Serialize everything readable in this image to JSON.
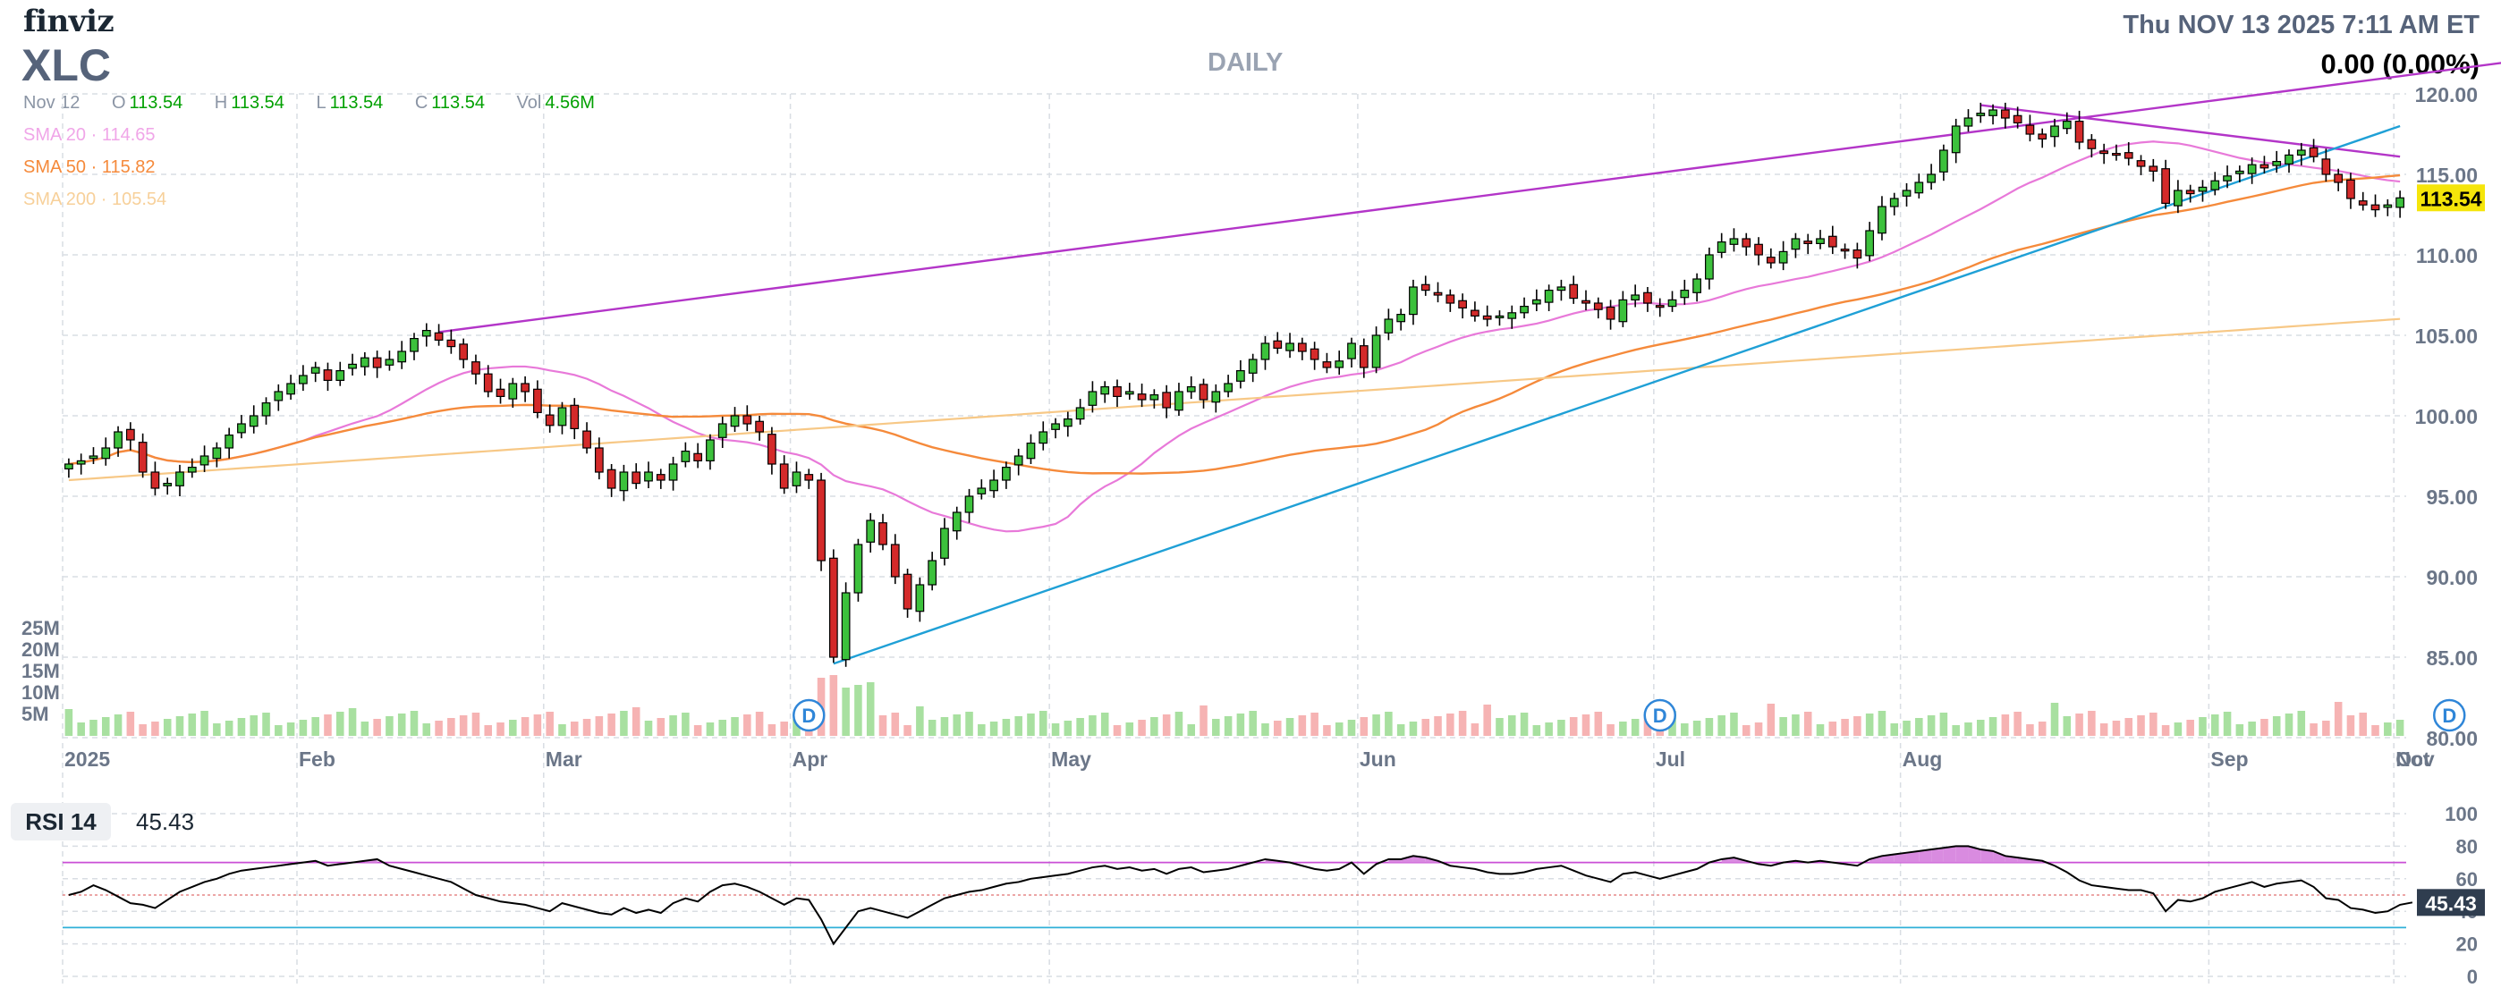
{
  "header": {
    "logo": "finviz",
    "ticker": "XLC",
    "timeframe": "DAILY",
    "datetime": "Thu NOV 13 2025 7:11 AM ET",
    "change": "0.00 (0.00%)"
  },
  "ohlc": {
    "date": "Nov 12",
    "o_label": "O",
    "o": "113.54",
    "h_label": "H",
    "h": "113.54",
    "l_label": "L",
    "l": "113.54",
    "c_label": "C",
    "c": "113.54",
    "vol_label": "Vol",
    "vol": "4.56M"
  },
  "sma": [
    {
      "label": "SMA 20",
      "value": "114.65",
      "color": "#e879d9"
    },
    {
      "label": "SMA 50",
      "value": "115.82",
      "color": "#f58a3b"
    },
    {
      "label": "SMA 200",
      "value": "105.54",
      "color": "#f7c886"
    }
  ],
  "rsi": {
    "label": "RSI 14",
    "value": "45.43",
    "levels": [
      30,
      50,
      70
    ]
  },
  "colors": {
    "up": "#3cc13c",
    "down": "#d42a2a",
    "trend_up": "#1fa0d6",
    "trend_down": "#b335c8",
    "vol_up": "#a8e0a0",
    "vol_down": "#f6b3b3",
    "rsi_line": "#000000",
    "last_price_bg": "#f5e50a",
    "rsi_badge_bg": "#2f3d4f"
  },
  "chart_data": {
    "type": "candlestick",
    "ticker": "XLC",
    "price_axis": {
      "ticks": [
        "120.00",
        "115.00",
        "110.00",
        "105.00",
        "100.00",
        "95.00",
        "90.00",
        "85.00",
        "80.00"
      ],
      "ylim": [
        80,
        120
      ]
    },
    "x_labels": [
      "2025",
      "Feb",
      "Mar",
      "Apr",
      "May",
      "Jun",
      "Jul",
      "Aug",
      "Sep",
      "Oct",
      "Nov"
    ],
    "volume_axis": {
      "ticks": [
        "25M",
        "20M",
        "15M",
        "10M",
        "5M"
      ]
    },
    "rsi_axis": {
      "ticks": [
        "100",
        "80",
        "60",
        "40",
        "20",
        "0"
      ],
      "ylim": [
        0,
        100
      ]
    },
    "last_price": "113.54",
    "last_rsi": "45.43",
    "dividend_marker": "D",
    "dividend_indices": [
      60,
      129,
      193
    ],
    "closes": [
      97,
      97.2,
      97.5,
      98,
      99,
      98.5,
      96.5,
      95.5,
      95.8,
      96.5,
      96.8,
      97.5,
      98,
      98.8,
      99.5,
      100,
      100.8,
      101.5,
      102,
      102.5,
      103,
      102.2,
      102.8,
      103.2,
      103.6,
      103,
      103.5,
      104,
      104.8,
      105.3,
      104.7,
      104.3,
      103.5,
      102.6,
      101.5,
      101.2,
      102,
      101.5,
      100.2,
      99.4,
      100.5,
      99.2,
      98,
      96.5,
      95.5,
      96.5,
      95.8,
      96.5,
      96,
      97,
      97.8,
      97.2,
      98.5,
      99.5,
      100,
      99.5,
      99,
      97,
      95.5,
      96.5,
      96,
      91,
      85,
      89,
      92,
      93.5,
      92,
      90,
      88,
      89.5,
      91,
      93,
      94,
      95,
      95.5,
      96,
      96.8,
      97.5,
      98.3,
      99,
      99.5,
      99.8,
      100.5,
      101.5,
      101.8,
      101.2,
      101.5,
      101,
      101.3,
      100.5,
      101.5,
      101.8,
      101,
      101.5,
      102,
      102.8,
      103.5,
      104.5,
      104.2,
      104.5,
      104,
      103.5,
      103,
      103.4,
      104.5,
      103,
      105,
      106,
      106.3,
      108,
      107.8,
      107.5,
      107,
      106.7,
      106.2,
      106,
      106.2,
      106.4,
      106.8,
      107.2,
      107.8,
      108,
      107.3,
      107,
      106.6,
      106,
      107.2,
      107.5,
      107,
      106.8,
      107.2,
      107.8,
      108.5,
      110,
      110.8,
      111,
      110.5,
      110,
      109.5,
      110.2,
      111,
      110.7,
      111,
      110.5,
      110.3,
      109.8,
      111.5,
      113,
      113.5,
      114,
      114.5,
      115,
      116.5,
      118,
      118.5,
      118.8,
      119,
      118.5,
      118.2,
      117.5,
      117.2,
      118,
      118.3,
      117,
      116.6,
      116.3,
      116.2,
      116,
      115.5,
      115.2,
      113.2,
      114,
      113.8,
      114.2,
      114.6,
      114.9,
      115.2,
      115.6,
      115.4,
      115.8,
      116.2,
      116.5,
      116.1,
      115,
      114.5,
      113.5,
      113.1,
      112.8,
      113.1,
      113.54
    ],
    "rsi": [
      50,
      52,
      56,
      53,
      49,
      45,
      44,
      42,
      47,
      52,
      55,
      58,
      60,
      63,
      65,
      66,
      67,
      68,
      69,
      70,
      71,
      68,
      69,
      70,
      71,
      72,
      68,
      66,
      64,
      62,
      60,
      58,
      54,
      50,
      48,
      46,
      45,
      44,
      42,
      40,
      45,
      43,
      41,
      39,
      38,
      42,
      39,
      41,
      39,
      45,
      48,
      46,
      52,
      56,
      57,
      55,
      52,
      48,
      44,
      48,
      47,
      35,
      20,
      30,
      40,
      42,
      40,
      38,
      36,
      40,
      44,
      48,
      50,
      52,
      53,
      55,
      57,
      58,
      60,
      61,
      62,
      63,
      65,
      67,
      68,
      66,
      67,
      65,
      66,
      63,
      66,
      67,
      64,
      65,
      66,
      68,
      70,
      72,
      71,
      70,
      68,
      66,
      65,
      66,
      70,
      63,
      69,
      72,
      72,
      74,
      73,
      71,
      68,
      67,
      66,
      64,
      63,
      63,
      64,
      66,
      67,
      68,
      65,
      62,
      60,
      58,
      63,
      64,
      62,
      60,
      62,
      64,
      66,
      70,
      72,
      73,
      71,
      69,
      68,
      70,
      71,
      70,
      71,
      70,
      69,
      68,
      72,
      74,
      75,
      76,
      77,
      78,
      79,
      80,
      80,
      78,
      77,
      74,
      73,
      72,
      71,
      68,
      64,
      59,
      56,
      55,
      54,
      53,
      53,
      51,
      40,
      47,
      46,
      48,
      52,
      54,
      56,
      58,
      55,
      57,
      58,
      59,
      55,
      48,
      47,
      42,
      41,
      39,
      40,
      44,
      45.43
    ]
  }
}
